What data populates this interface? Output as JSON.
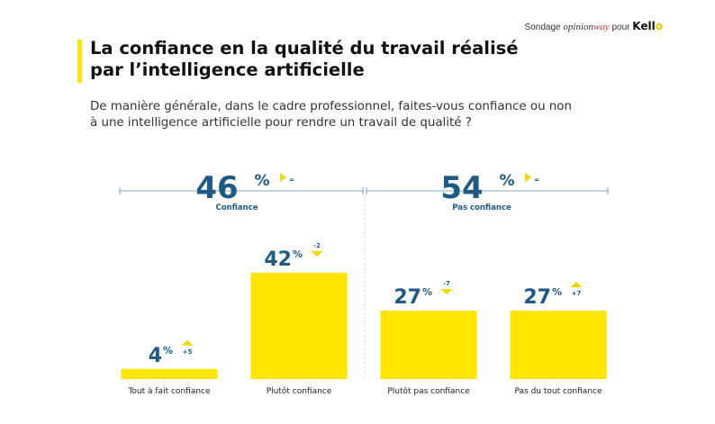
{
  "header": {
    "prefix": "Sondage",
    "brand_a": "opinion",
    "brand_b": "way",
    "connector": "pour",
    "brand_c": "Kell",
    "brand_c_end": "o"
  },
  "title_line1": "La confiance en la qualité du travail réalisé",
  "title_line2": "par l’intelligence artificielle",
  "question_line1": "De manière générale, dans le cadre professionnel, faites-vous confiance ou non",
  "question_line2": "à une intelligence artificielle pour rendre un travail de qualité ?",
  "colors": {
    "bar": "#ffe600",
    "accent_text": "#1d5b86",
    "arrow": "#f2d600",
    "axis_line": "#5a8fb5"
  },
  "chart_data": {
    "type": "bar",
    "categories": [
      "Tout à fait confiance",
      "Plutôt confiance",
      "Plutôt pas confiance",
      "Pas du tout confiance"
    ],
    "values": [
      4,
      42,
      27,
      27
    ],
    "value_labels": [
      "4%",
      "42%",
      "27%",
      "27%"
    ],
    "deltas": [
      {
        "text": "+5",
        "direction": "up"
      },
      {
        "text": "-2",
        "direction": "down"
      },
      {
        "text": "-7",
        "direction": "down"
      },
      {
        "text": "+7",
        "direction": "up"
      }
    ],
    "ylim": [
      0,
      42
    ],
    "groups": [
      {
        "label": "Confiance",
        "value": "46%",
        "trend": "=",
        "categories": [
          0,
          1
        ]
      },
      {
        "label": "Pas confiance",
        "value": "54%",
        "trend": "=",
        "categories": [
          2,
          3
        ]
      }
    ]
  }
}
